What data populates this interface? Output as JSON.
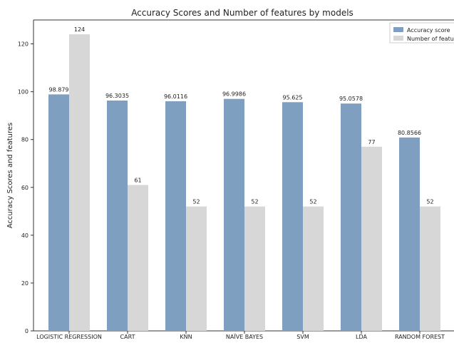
{
  "chart_data": {
    "type": "bar",
    "title": "Accuracy Scores and Number of features by models",
    "xlabel": "",
    "ylabel": "Accuracy Scores and features",
    "categories": [
      "LOGISTIC REGRESSION",
      "CART",
      "KNN",
      "NAÏVE BAYES",
      "SVM",
      "LDA",
      "RANDOM FOREST"
    ],
    "series": [
      {
        "name": "Accuracy score",
        "values": [
          98.879,
          96.3035,
          96.0116,
          96.9986,
          95.625,
          95.0578,
          80.8566
        ],
        "labels": [
          "98.879",
          "96.3035",
          "96.0116",
          "96.9986",
          "95.625",
          "95.0578",
          "80.8566"
        ],
        "color": "#7f9fc0"
      },
      {
        "name": "Number of feature",
        "values": [
          124,
          61,
          52,
          52,
          52,
          77,
          52
        ],
        "labels": [
          "124",
          "61",
          "52",
          "52",
          "52",
          "77",
          "52"
        ],
        "color": "#d7d7d7"
      }
    ],
    "ylim": [
      0,
      130
    ],
    "yticks": [
      0,
      20,
      40,
      60,
      80,
      100,
      120
    ],
    "grid": false,
    "legend": "top-right"
  }
}
